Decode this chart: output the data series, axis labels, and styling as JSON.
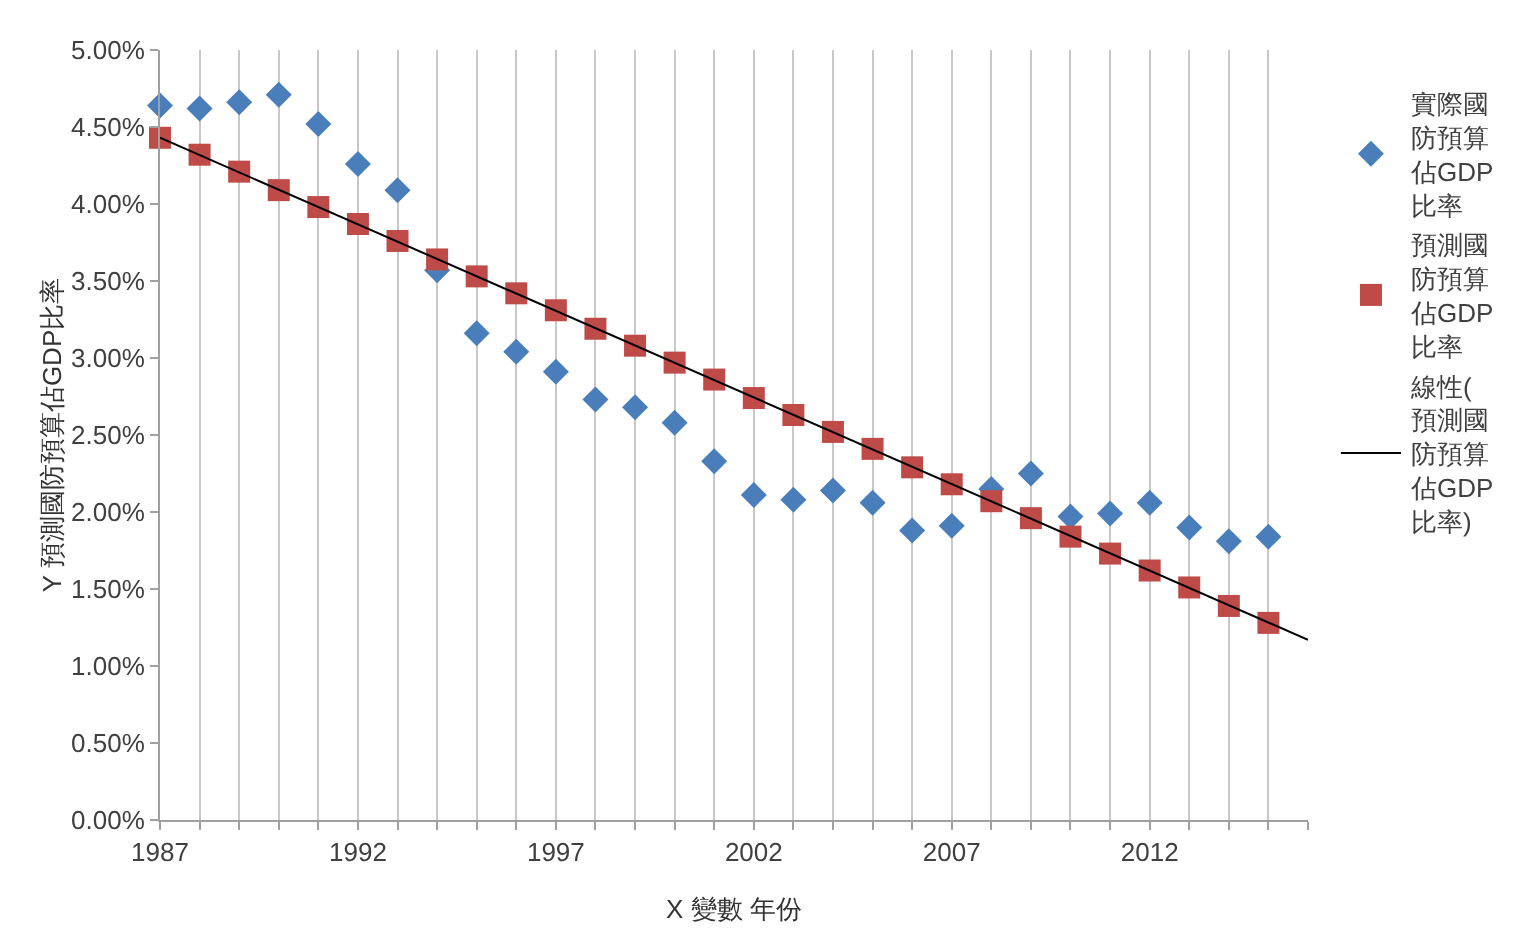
{
  "chart_data": {
    "type": "scatter",
    "xlabel": "X 變數 年份",
    "ylabel": "Y 預測國防預算佔GDP比率",
    "x": [
      1987,
      1988,
      1989,
      1990,
      1991,
      1992,
      1993,
      1994,
      1995,
      1996,
      1997,
      1998,
      1999,
      2000,
      2001,
      2002,
      2003,
      2004,
      2005,
      2006,
      2007,
      2008,
      2009,
      2010,
      2011,
      2012,
      2013,
      2014,
      2015
    ],
    "series": [
      {
        "name": "實際國防預算佔GDP比率",
        "marker": "diamond",
        "color": "#4a7ebb",
        "values": [
          4.64,
          4.62,
          4.66,
          4.71,
          4.52,
          4.26,
          4.09,
          3.57,
          3.16,
          3.04,
          2.91,
          2.73,
          2.68,
          2.58,
          2.33,
          2.11,
          2.08,
          2.14,
          2.06,
          1.88,
          1.91,
          2.15,
          2.25,
          1.97,
          1.99,
          2.06,
          1.9,
          1.81,
          1.84
        ]
      },
      {
        "name": "預測國防預算佔GDP比率",
        "type": "scatter",
        "marker": "square",
        "color": "#be4b48",
        "values": [
          4.43,
          4.32,
          4.21,
          4.09,
          3.98,
          3.87,
          3.76,
          3.64,
          3.53,
          3.42,
          3.31,
          3.19,
          3.08,
          2.97,
          2.86,
          2.74,
          2.63,
          2.52,
          2.41,
          2.29,
          2.18,
          2.07,
          1.96,
          1.84,
          1.73,
          1.62,
          1.51,
          1.39,
          1.28
        ]
      },
      {
        "name": "線性(預測國防預算佔GDP比率)",
        "type": "line",
        "marker": "none",
        "line_style": "solid",
        "color": "#000000",
        "x": [
          1987,
          2016
        ],
        "values": [
          4.43,
          1.17
        ]
      }
    ],
    "xlim": [
      1987,
      2016
    ],
    "xticks": [
      1987,
      {
        "value": 1988,
        "label": null
      },
      {
        "value": 1989,
        "label": null
      },
      {
        "value": 1990,
        "label": null
      },
      {
        "value": 1991,
        "label": null
      },
      1992,
      {
        "value": 1993,
        "label": null
      },
      {
        "value": 1994,
        "label": null
      },
      {
        "value": 1995,
        "label": null
      },
      {
        "value": 1996,
        "label": null
      },
      1997,
      {
        "value": 1998,
        "label": null
      },
      {
        "value": 1999,
        "label": null
      },
      {
        "value": 2000,
        "label": null
      },
      {
        "value": 2001,
        "label": null
      },
      2002,
      {
        "value": 2003,
        "label": null
      },
      {
        "value": 2004,
        "label": null
      },
      {
        "value": 2005,
        "label": null
      },
      {
        "value": 2006,
        "label": null
      },
      2007,
      {
        "value": 2008,
        "label": null
      },
      {
        "value": 2009,
        "label": null
      },
      {
        "value": 2010,
        "label": null
      },
      {
        "value": 2011,
        "label": null
      },
      2012,
      {
        "value": 2013,
        "label": null
      },
      {
        "value": 2014,
        "label": null
      },
      {
        "value": 2015,
        "label": null
      },
      {
        "value": 2016,
        "label": null
      }
    ],
    "ylim": [
      0,
      5
    ],
    "yticks": [
      {
        "value": 0,
        "label": "0.00%"
      },
      {
        "value": 0.5,
        "label": "0.50%"
      },
      {
        "value": 1,
        "label": "1.00%"
      },
      {
        "value": 1.5,
        "label": "1.50%"
      },
      {
        "value": 2,
        "label": "2.00%"
      },
      {
        "value": 2.5,
        "label": "2.50%"
      },
      {
        "value": 3,
        "label": "3.00%"
      },
      {
        "value": 3.5,
        "label": "3.50%"
      },
      {
        "value": 4,
        "label": "4.00%"
      },
      {
        "value": 4.5,
        "label": "4.50%"
      },
      {
        "value": 5,
        "label": "5.00%"
      }
    ],
    "grid": "x",
    "legend": "right"
  }
}
